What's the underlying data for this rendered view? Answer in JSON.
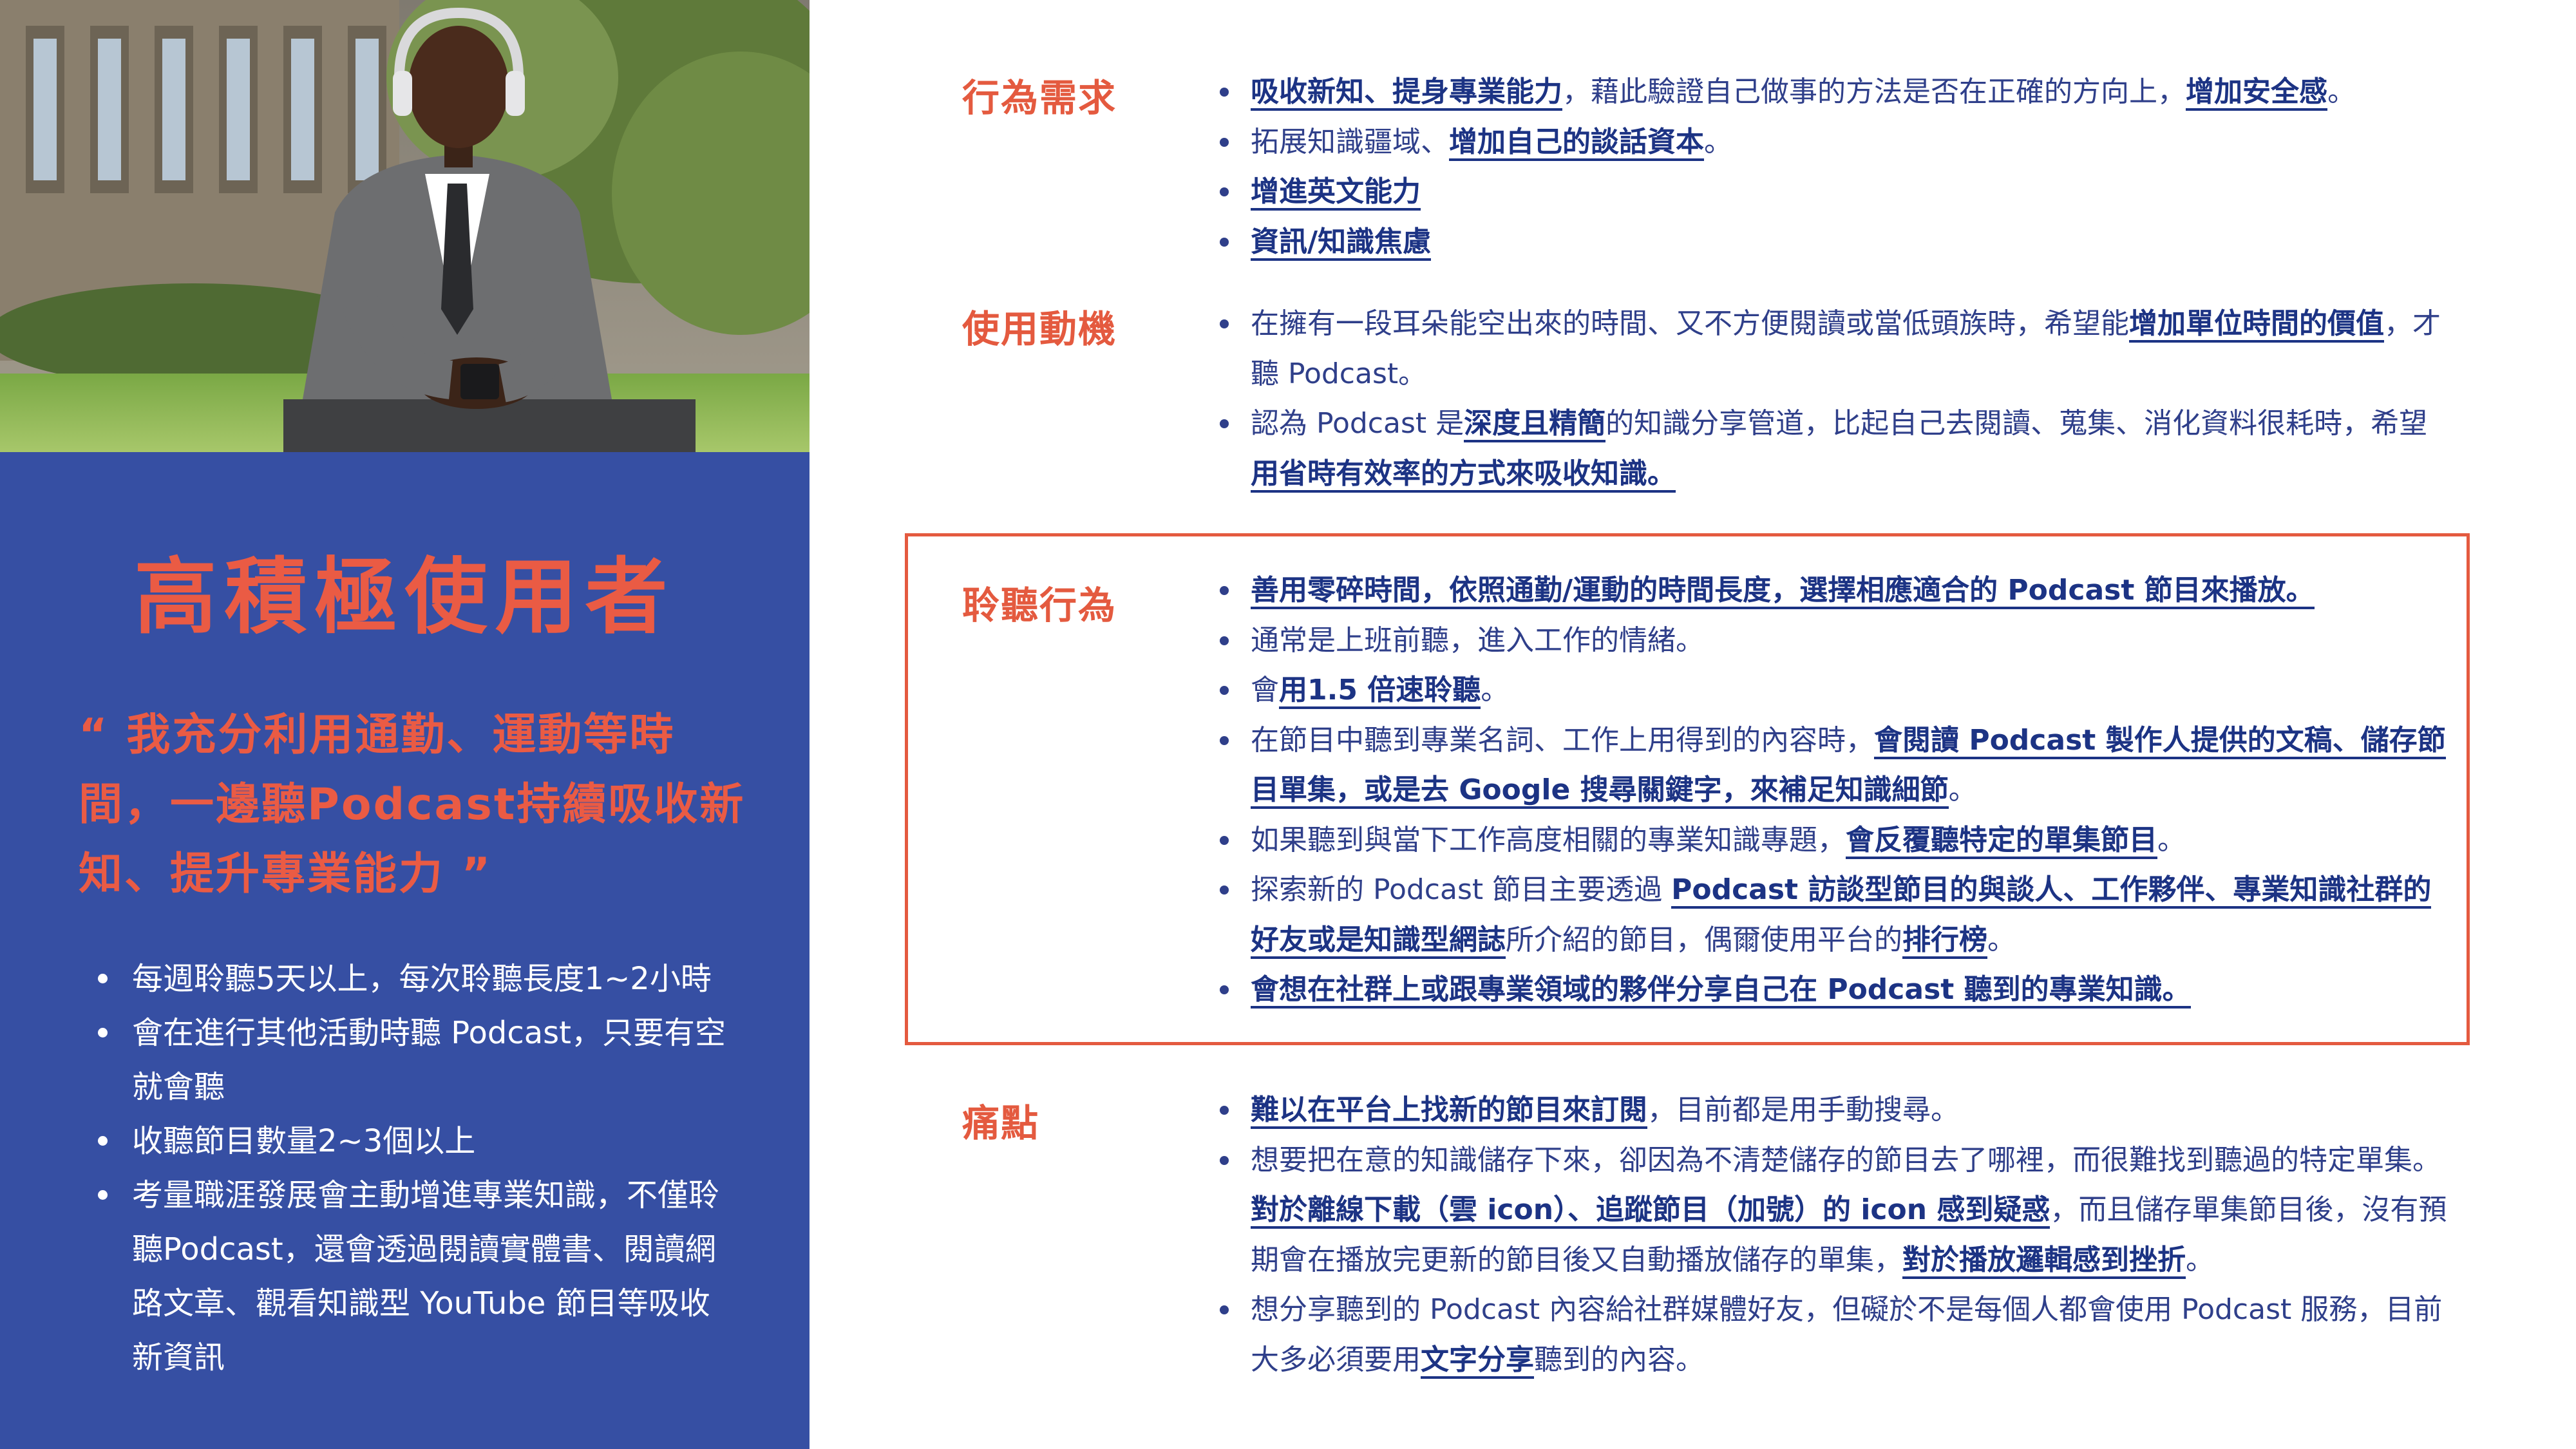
{
  "colors": {
    "left_panel": "#364fa3",
    "accent_red": "#ea5b44",
    "body_text": "#2f3f8a",
    "highlight_border": "#e45a3f"
  },
  "left_panel": {
    "photo_icon": "man-with-headphones-photo",
    "title": "高積極使用者",
    "quote": "“ 我充分利用通勤、運動等時間，一邊聽Podcast持續吸收新知、提升專業能力 ”",
    "habits": [
      "每週聆聽5天以上，每次聆聽長度1~2小時",
      "會在進行其他活動時聽 Podcast，只要有空就會聽",
      "收聽節目數量2~3個以上",
      "考量職涯發展會主動增進專業知識，不僅聆聽Podcast，還會透過閱讀實體書、閱讀網路文章、觀看知識型 YouTube 節目等吸收新資訊"
    ]
  },
  "sections": [
    {
      "label": "行為需求",
      "items": [
        [
          {
            "t": "吸收新知、提身專業能力",
            "h": true
          },
          {
            "t": "，藉此驗證自己做事的方法是否在正確的方向上，",
            "h": false
          },
          {
            "t": "增加安全感",
            "h": true
          },
          {
            "t": "。",
            "h": false
          }
        ],
        [
          {
            "t": "拓展知識疆域、",
            "h": false
          },
          {
            "t": "增加自己的談話資本",
            "h": true
          },
          {
            "t": "。",
            "h": false
          }
        ],
        [
          {
            "t": "增進英文能力",
            "h": true
          }
        ],
        [
          {
            "t": "資訊/知識焦慮",
            "h": true
          }
        ]
      ]
    },
    {
      "label": "使用動機",
      "items": [
        [
          {
            "t": "在擁有一段耳朵能空出來的時間、又不方便閱讀或當低頭族時，希望能",
            "h": false
          },
          {
            "t": "增加單位時間的價值",
            "h": true
          },
          {
            "t": "，才聽 Podcast。",
            "h": false
          }
        ],
        [
          {
            "t": "認為 Podcast 是",
            "h": false
          },
          {
            "t": "深度且精簡",
            "h": true
          },
          {
            "t": "的知識分享管道，比起自己去閱讀、蒐集、消化資料很耗時，希望",
            "h": false
          },
          {
            "t": "用省時有效率的方式來吸收知識。",
            "h": true
          }
        ]
      ]
    },
    {
      "label": "聆聽行為",
      "items": [
        [
          {
            "t": "善用零碎時間，依照通勤/運動的時間長度，選擇相應適合的 Podcast 節目來播放。",
            "h": true
          }
        ],
        [
          {
            "t": "通常是上班前聽，進入工作的情緒。",
            "h": false
          }
        ],
        [
          {
            "t": "會",
            "h": false
          },
          {
            "t": "用1.5 倍速聆聽",
            "h": true
          },
          {
            "t": "。",
            "h": false
          }
        ],
        [
          {
            "t": "在節目中聽到專業名詞、工作上用得到的內容時，",
            "h": false
          },
          {
            "t": "會閱讀 Podcast 製作人提供的文稿、儲存節目單集，或是去 Google 搜尋關鍵字，來補足知識細節",
            "h": true
          },
          {
            "t": "。",
            "h": false
          }
        ],
        [
          {
            "t": "如果聽到與當下工作高度相關的專業知識專題，",
            "h": false
          },
          {
            "t": "會反覆聽特定的單集節目",
            "h": true
          },
          {
            "t": "。",
            "h": false
          }
        ],
        [
          {
            "t": "探索新的 Podcast 節目主要透過 ",
            "h": false
          },
          {
            "t": "Podcast 訪談型節目的與談人、工作夥伴、專業知識社群的好友或是知識型網誌",
            "h": true
          },
          {
            "t": "所介紹的節目，偶爾使用平台的",
            "h": false
          },
          {
            "t": "排行榜",
            "h": true
          },
          {
            "t": "。",
            "h": false
          }
        ],
        [
          {
            "t": "會想在社群上或跟專業領域的夥伴分享自己在 Podcast 聽到的專業知識。",
            "h": true
          }
        ]
      ]
    },
    {
      "label": "痛點",
      "items": [
        [
          {
            "t": "難以在平台上找新的節目來訂閱",
            "h": true
          },
          {
            "t": "，目前都是用手動搜尋。",
            "h": false
          }
        ],
        [
          {
            "t": "想要把在意的知識儲存下來，卻因為不清楚儲存的節目去了哪裡，而很難找到聽過的特定單集。",
            "h": false
          },
          {
            "t": "對於離線下載（雲 icon）、追蹤節目（加號）的 icon 感到疑惑",
            "h": true
          },
          {
            "t": "，而且儲存單集節目後，沒有預期會在播放完更新的節目後又自動播放儲存的單集，",
            "h": false
          },
          {
            "t": "對於播放邏輯感到挫折",
            "h": true
          },
          {
            "t": "。",
            "h": false
          }
        ],
        [
          {
            "t": "想分享聽到的 Podcast 內容給社群媒體好友，但礙於不是每個人都會使用 Podcast 服務，目前大多必須要用",
            "h": false
          },
          {
            "t": "文字分享",
            "h": true
          },
          {
            "t": "聽到的內容。",
            "h": false
          }
        ]
      ]
    }
  ]
}
